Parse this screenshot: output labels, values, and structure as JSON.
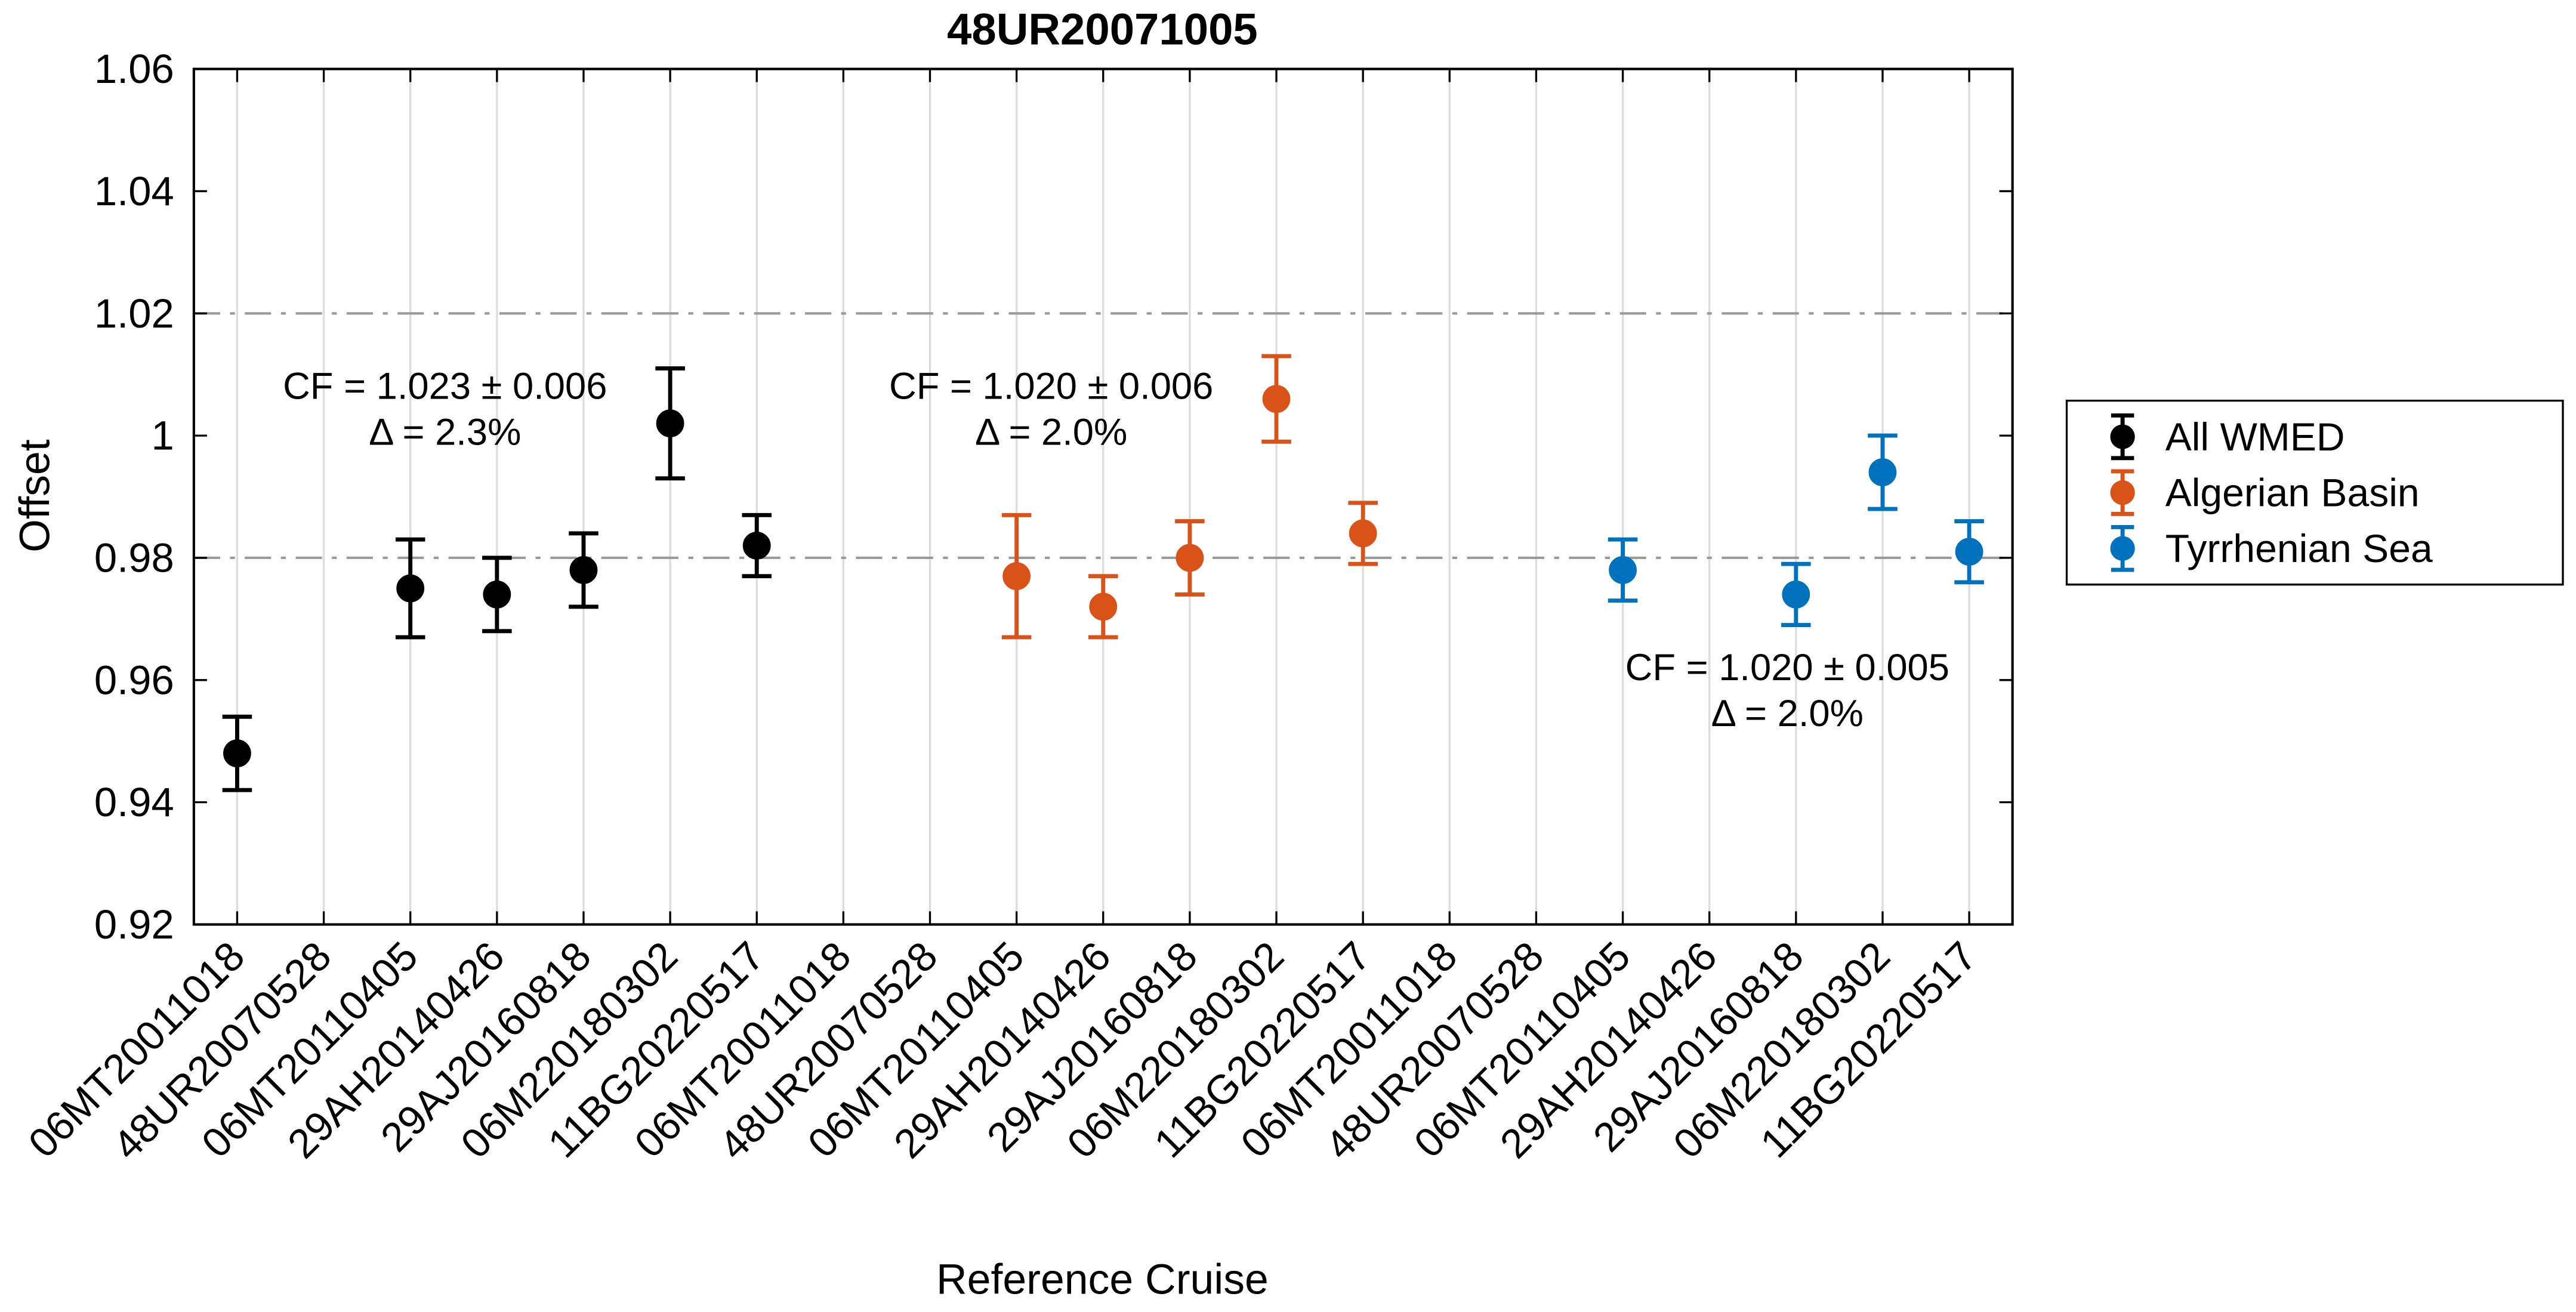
{
  "chart_data": {
    "type": "scatter",
    "title": "48UR20071005",
    "xlabel": "Reference Cruise",
    "ylabel": "Offset",
    "ylim": [
      0.92,
      1.06
    ],
    "yticks": [
      0.92,
      0.94,
      0.96,
      0.98,
      1,
      1.02,
      1.04,
      1.06
    ],
    "ytick_labels": [
      "0.92",
      "0.94",
      "0.96",
      "0.98",
      "1",
      "1.02",
      "1.04",
      "1.06"
    ],
    "reference_lines": [
      0.98,
      1.02
    ],
    "grid": "x-only",
    "legend_position": "right-outside",
    "categories": [
      "06MT20011018",
      "48UR20070528",
      "06MT20110405",
      "29AH20140426",
      "29AJ20160818",
      "06M220180302",
      "11BG20220517",
      "06MT20011018",
      "48UR20070528",
      "06MT20110405",
      "29AH20140426",
      "29AJ20160818",
      "06M220180302",
      "11BG20220517",
      "06MT20011018",
      "48UR20070528",
      "06MT20110405",
      "29AH20140426",
      "29AJ20160818",
      "06M220180302",
      "11BG20220517"
    ],
    "series": [
      {
        "name": "All WMED",
        "color": "#000000",
        "points": [
          {
            "category_index": 0,
            "value": 0.948,
            "error": 0.006
          },
          {
            "category_index": 2,
            "value": 0.975,
            "error": 0.008
          },
          {
            "category_index": 3,
            "value": 0.974,
            "error": 0.006
          },
          {
            "category_index": 4,
            "value": 0.978,
            "error": 0.006
          },
          {
            "category_index": 5,
            "value": 1.002,
            "error": 0.009
          },
          {
            "category_index": 6,
            "value": 0.982,
            "error": 0.005
          }
        ]
      },
      {
        "name": "Algerian Basin",
        "color": "#D95319",
        "points": [
          {
            "category_index": 9,
            "value": 0.977,
            "error": 0.01
          },
          {
            "category_index": 10,
            "value": 0.972,
            "error": 0.005
          },
          {
            "category_index": 11,
            "value": 0.98,
            "error": 0.006
          },
          {
            "category_index": 12,
            "value": 1.006,
            "error": 0.007
          },
          {
            "category_index": 13,
            "value": 0.984,
            "error": 0.005
          }
        ]
      },
      {
        "name": "Tyrrhenian Sea",
        "color": "#0072BD",
        "points": [
          {
            "category_index": 16,
            "value": 0.978,
            "error": 0.005
          },
          {
            "category_index": 18,
            "value": 0.974,
            "error": 0.005
          },
          {
            "category_index": 19,
            "value": 0.994,
            "error": 0.006
          },
          {
            "category_index": 20,
            "value": 0.981,
            "error": 0.005
          }
        ]
      }
    ],
    "annotations": [
      {
        "lines": [
          "CF = 1.023 ± 0.006",
          "Δ = 2.3%"
        ],
        "color": "#000000",
        "cx": 2.4,
        "cy": 1.006
      },
      {
        "lines": [
          "CF = 1.020 ± 0.006",
          "Δ = 2.0%"
        ],
        "color": "#D95319",
        "cx": 9.4,
        "cy": 1.006
      },
      {
        "lines": [
          "CF = 1.020 ± 0.005",
          "Δ = 2.0%"
        ],
        "color": "#0072BD",
        "cx": 17.9,
        "cy": 0.96
      }
    ],
    "style_colors": {
      "gridline": "#DCDCDC",
      "reference_line": "#9A9A9A",
      "axes_border": "#000000",
      "background": "#FFFFFF"
    }
  }
}
